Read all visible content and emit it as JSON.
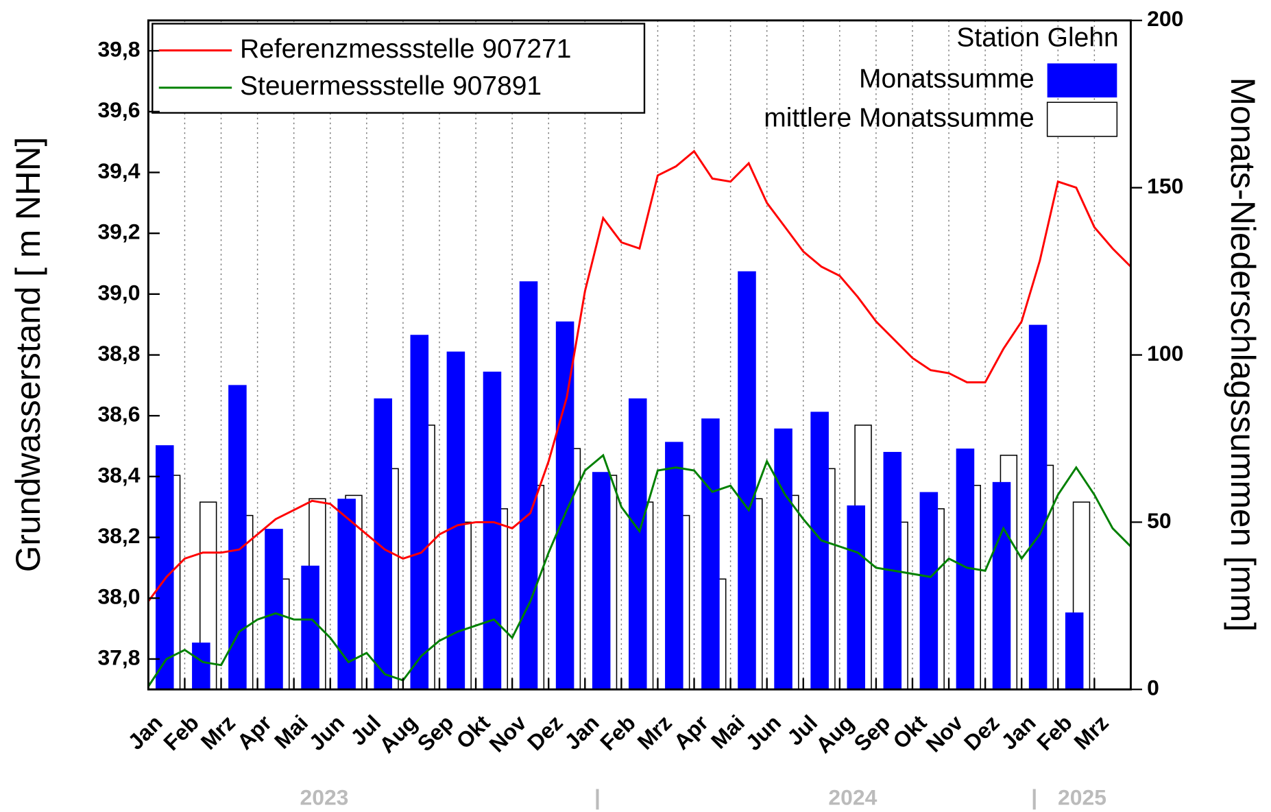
{
  "chart_data": {
    "type": "bar-line",
    "y_label": "Grundwasserstand [ m NHN]",
    "y2_label": "Monats-Niederschlagssummen [mm]",
    "legend_title": "Station Glehn",
    "categories": [
      "Jan",
      "Feb",
      "Mrz",
      "Apr",
      "Mai",
      "Jun",
      "Jul",
      "Aug",
      "Sep",
      "Okt",
      "Nov",
      "Dez",
      "Jan",
      "Feb",
      "Mrz",
      "Apr",
      "Mai",
      "Jun",
      "Jul",
      "Aug",
      "Sep",
      "Okt",
      "Nov",
      "Dez",
      "Jan",
      "Feb",
      "Mrz"
    ],
    "years": [
      "2023",
      "2024",
      "2025"
    ],
    "xlim": [
      0,
      27
    ],
    "x": [
      0,
      0.5,
      1,
      1.5,
      2,
      2.5,
      3,
      3.5,
      4,
      4.5,
      5,
      5.5,
      6,
      6.5,
      7,
      7.5,
      8,
      8.5,
      9,
      9.5,
      10,
      10.5,
      11,
      11.5,
      12,
      12.5,
      13,
      13.5,
      14,
      14.5,
      15,
      15.5,
      16,
      16.5,
      17,
      17.5,
      18,
      18.5,
      19,
      19.5,
      20,
      20.5,
      21,
      21.5,
      22,
      22.5,
      23,
      23.5,
      24,
      24.5,
      25,
      25.5,
      26,
      26.5,
      27
    ],
    "ylim": [
      37.7,
      39.9
    ],
    "yticks": [
      {
        "value": 37.8,
        "label": "37,8"
      },
      {
        "value": 38.0,
        "label": "38,0"
      },
      {
        "value": 38.2,
        "label": "38,2"
      },
      {
        "value": 38.4,
        "label": "38,4"
      },
      {
        "value": 38.6,
        "label": "38,6"
      },
      {
        "value": 38.8,
        "label": "38,8"
      },
      {
        "value": 39.0,
        "label": "39,0"
      },
      {
        "value": 39.2,
        "label": "39,2"
      },
      {
        "value": 39.4,
        "label": "39,4"
      },
      {
        "value": 39.6,
        "label": "39,6"
      },
      {
        "value": 39.8,
        "label": "39,8"
      }
    ],
    "y2lim": [
      0,
      200
    ],
    "y2ticks": [
      0,
      50,
      100,
      150,
      200
    ],
    "grid": "x-dotted",
    "series": [
      {
        "name": "Monatssumme",
        "type": "bar",
        "axis": "y2",
        "color": "#0000ff",
        "values": [
          73,
          14,
          91,
          48,
          37,
          57,
          87,
          106,
          101,
          95,
          122,
          110,
          65,
          87,
          74,
          81,
          125,
          78,
          83,
          55,
          71,
          59,
          72,
          62,
          109,
          23,
          null
        ]
      },
      {
        "name": "mittlere Monatssumme",
        "type": "bar",
        "axis": "y2",
        "color": "#ffffff",
        "values": [
          64,
          56,
          52,
          33,
          57,
          58,
          66,
          79,
          50,
          54,
          61,
          72,
          64,
          56,
          52,
          33,
          57,
          58,
          66,
          79,
          50,
          54,
          61,
          70,
          67,
          56,
          null
        ]
      },
      {
        "name": "Referenzmessstelle 907271",
        "type": "line",
        "color": "#ff0000",
        "values": [
          37.99,
          38.07,
          38.13,
          38.15,
          38.15,
          38.16,
          38.21,
          38.26,
          38.29,
          38.32,
          38.31,
          38.26,
          38.21,
          38.16,
          38.13,
          38.15,
          38.21,
          38.24,
          38.25,
          38.25,
          38.23,
          38.28,
          38.45,
          38.66,
          39.01,
          39.25,
          39.17,
          39.15,
          39.39,
          39.42,
          39.47,
          39.38,
          39.37,
          39.43,
          39.3,
          39.22,
          39.14,
          39.09,
          39.06,
          38.99,
          38.91,
          38.85,
          38.79,
          38.75,
          38.74,
          38.71,
          38.71,
          38.82,
          38.91,
          39.11,
          39.37,
          39.35,
          39.22,
          39.15,
          39.09
        ]
      },
      {
        "name": "Steuermessstelle 907891",
        "type": "line",
        "color": "#008000",
        "values": [
          37.71,
          37.8,
          37.83,
          37.79,
          37.78,
          37.89,
          37.93,
          37.95,
          37.93,
          37.93,
          37.87,
          37.79,
          37.82,
          37.75,
          37.73,
          37.81,
          37.86,
          37.89,
          37.91,
          37.93,
          37.87,
          37.99,
          38.15,
          38.29,
          38.42,
          38.47,
          38.3,
          38.22,
          38.42,
          38.43,
          38.42,
          38.35,
          38.37,
          38.29,
          38.45,
          38.34,
          38.26,
          38.19,
          38.17,
          38.15,
          38.1,
          38.09,
          38.08,
          38.07,
          38.13,
          38.1,
          38.09,
          38.23,
          38.13,
          38.21,
          38.34,
          38.43,
          38.34,
          38.23,
          38.17
        ]
      }
    ]
  }
}
